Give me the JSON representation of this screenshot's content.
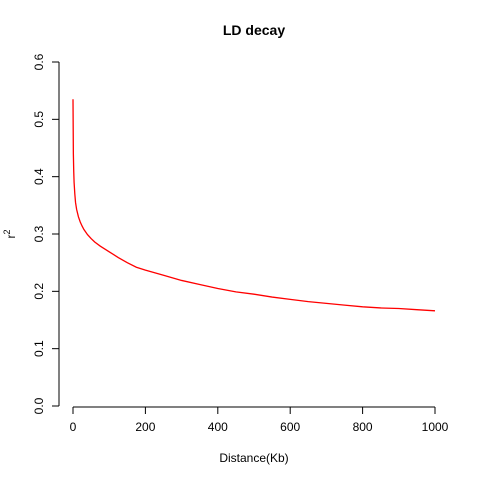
{
  "chart_data": {
    "type": "line",
    "title": "LD decay",
    "xlabel": "Distance(Kb)",
    "ylabel": "r",
    "ylabel_superscript": "2",
    "xlim": [
      0,
      1000
    ],
    "ylim": [
      0,
      0.6
    ],
    "x_ticks": [
      "0",
      "200",
      "400",
      "600",
      "800",
      "1000"
    ],
    "y_ticks": [
      "0.0",
      "0.1",
      "0.2",
      "0.3",
      "0.4",
      "0.5",
      "0.6"
    ],
    "grid": false,
    "line_color": "#ff0000",
    "series": [
      {
        "x": [
          0,
          1,
          2,
          3,
          5,
          7,
          10,
          15,
          20,
          25,
          30,
          40,
          50,
          60,
          75,
          100,
          125,
          150,
          175,
          200,
          250,
          300,
          350,
          400,
          450,
          500,
          550,
          600,
          650,
          700,
          750,
          800,
          850,
          900,
          950,
          1000
        ],
        "y": [
          0.535,
          0.44,
          0.41,
          0.39,
          0.37,
          0.355,
          0.343,
          0.33,
          0.321,
          0.314,
          0.308,
          0.299,
          0.292,
          0.286,
          0.279,
          0.269,
          0.259,
          0.25,
          0.242,
          0.237,
          0.228,
          0.219,
          0.212,
          0.205,
          0.199,
          0.195,
          0.19,
          0.186,
          0.182,
          0.179,
          0.176,
          0.173,
          0.171,
          0.17,
          0.168,
          0.166
        ]
      }
    ]
  }
}
